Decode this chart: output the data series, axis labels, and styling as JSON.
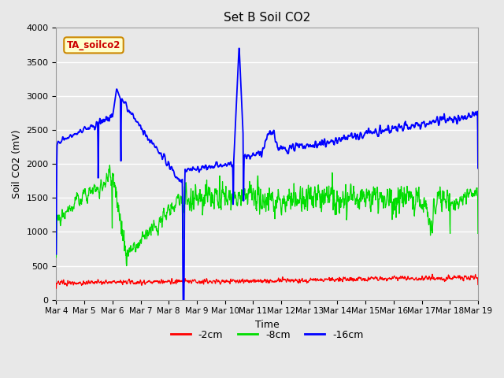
{
  "title": "Set B Soil CO2",
  "xlabel": "Time",
  "ylabel": "Soil CO2 (mV)",
  "ylim": [
    0,
    4000
  ],
  "legend_label": "TA_soilco2",
  "series_labels": [
    "-2cm",
    "-8cm",
    "-16cm"
  ],
  "series_colors": [
    "#ff0000",
    "#00dd00",
    "#0000ff"
  ],
  "x_tick_labels": [
    "Mar 4",
    "Mar 5",
    "Mar 6",
    "Mar 7",
    "Mar 8",
    "Mar 9",
    "Mar 10",
    "Mar 11",
    "Mar 12",
    "Mar 13",
    "Mar 14",
    "Mar 15",
    "Mar 16",
    "Mar 17",
    "Mar 18",
    "Mar 19"
  ],
  "background_color": "#e8e8e8",
  "plot_bg_color": "#e8e8e8",
  "grid_color": "#ffffff",
  "annotation_box_color": "#ffffcc",
  "annotation_text_color": "#cc0000",
  "n_points": 1500,
  "seed": 42
}
